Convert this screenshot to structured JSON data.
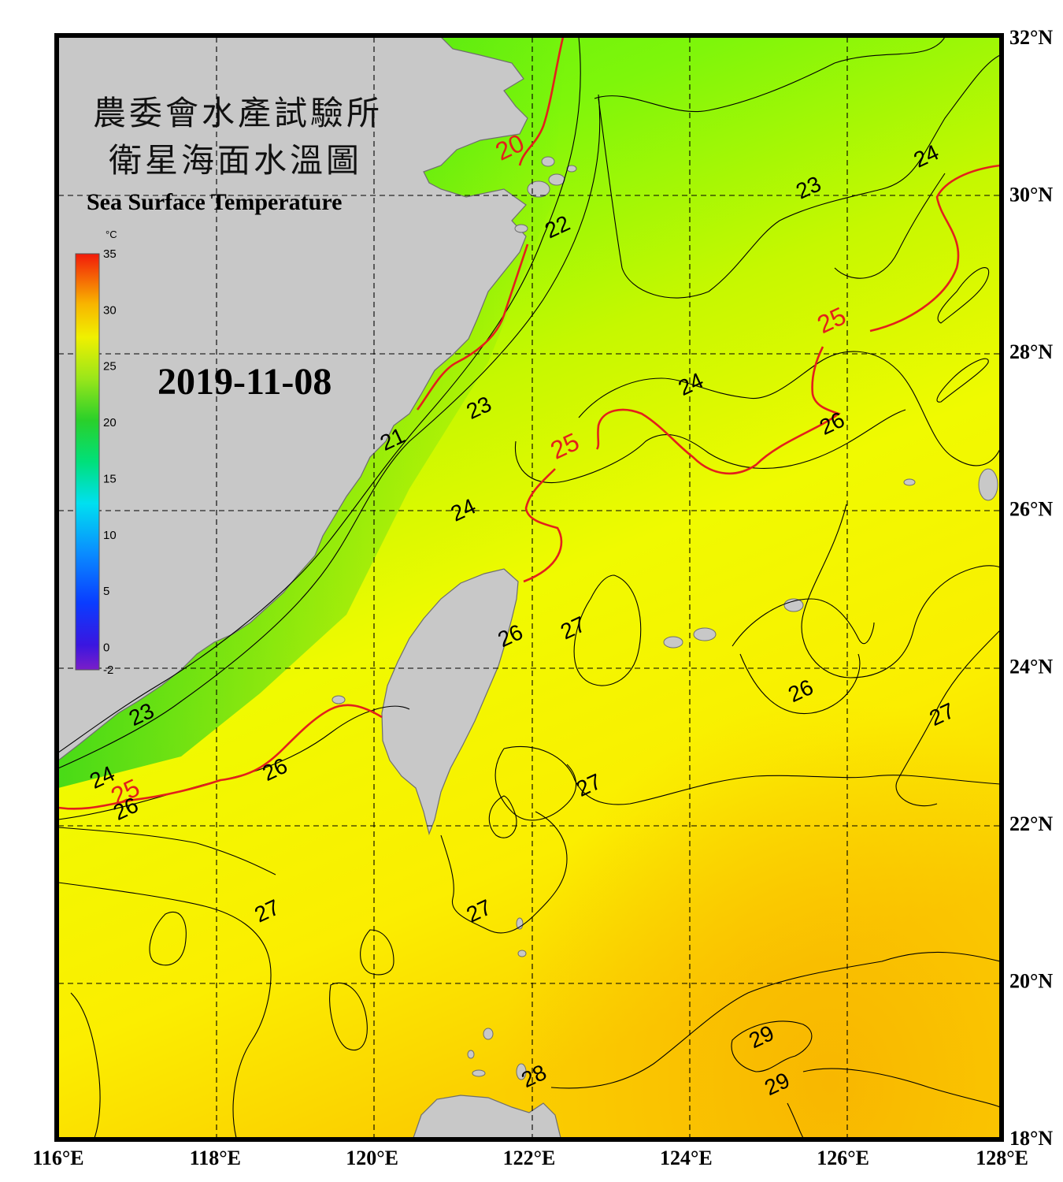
{
  "title": {
    "zh_line1": "農委會水產試驗所",
    "zh_line2": "衛星海面水溫圖",
    "en": "Sea Surface Temperature"
  },
  "date": "2019-11-08",
  "colorbar": {
    "unit": "°C",
    "ticks": [
      "35",
      "30",
      "25",
      "20",
      "15",
      "10",
      "5",
      "0",
      "-2"
    ]
  },
  "axes": {
    "lon_labels": [
      "116°E",
      "118°E",
      "120°E",
      "122°E",
      "124°E",
      "126°E",
      "128°E"
    ],
    "lat_labels": [
      "32°N",
      "30°N",
      "28°N",
      "26°N",
      "24°N",
      "22°N",
      "20°N",
      "18°N"
    ]
  },
  "contour_labels": [
    {
      "text": "20",
      "lon": 121.8,
      "lat": 30.5,
      "highlight": true
    },
    {
      "text": "22",
      "lon": 122.4,
      "lat": 29.5,
      "highlight": false
    },
    {
      "text": "23",
      "lon": 125.6,
      "lat": 30.0,
      "highlight": false
    },
    {
      "text": "24",
      "lon": 127.1,
      "lat": 30.4,
      "highlight": false
    },
    {
      "text": "25",
      "lon": 125.9,
      "lat": 28.3,
      "highlight": true
    },
    {
      "text": "24",
      "lon": 124.1,
      "lat": 27.5,
      "highlight": false
    },
    {
      "text": "26",
      "lon": 125.9,
      "lat": 27.0,
      "highlight": false
    },
    {
      "text": "23",
      "lon": 121.4,
      "lat": 27.2,
      "highlight": false
    },
    {
      "text": "25",
      "lon": 122.5,
      "lat": 26.7,
      "highlight": true
    },
    {
      "text": "21",
      "lon": 120.3,
      "lat": 26.8,
      "highlight": false
    },
    {
      "text": "24",
      "lon": 121.2,
      "lat": 25.9,
      "highlight": false
    },
    {
      "text": "27",
      "lon": 122.6,
      "lat": 24.4,
      "highlight": false
    },
    {
      "text": "26",
      "lon": 121.8,
      "lat": 24.3,
      "highlight": false
    },
    {
      "text": "26",
      "lon": 125.5,
      "lat": 23.6,
      "highlight": false
    },
    {
      "text": "27",
      "lon": 127.3,
      "lat": 23.3,
      "highlight": false
    },
    {
      "text": "23",
      "lon": 117.1,
      "lat": 23.3,
      "highlight": false
    },
    {
      "text": "26",
      "lon": 118.8,
      "lat": 22.6,
      "highlight": false
    },
    {
      "text": "24",
      "lon": 116.6,
      "lat": 22.5,
      "highlight": false
    },
    {
      "text": "25",
      "lon": 116.9,
      "lat": 22.3,
      "highlight": true
    },
    {
      "text": "26",
      "lon": 116.9,
      "lat": 22.1,
      "highlight": false
    },
    {
      "text": "27",
      "lon": 122.8,
      "lat": 22.4,
      "highlight": false
    },
    {
      "text": "27",
      "lon": 118.7,
      "lat": 20.8,
      "highlight": false
    },
    {
      "text": "27",
      "lon": 121.4,
      "lat": 20.8,
      "highlight": false
    },
    {
      "text": "29",
      "lon": 125.0,
      "lat": 19.2,
      "highlight": false
    },
    {
      "text": "29",
      "lon": 125.2,
      "lat": 18.6,
      "highlight": false
    },
    {
      "text": "28",
      "lon": 122.1,
      "lat": 18.7,
      "highlight": false
    }
  ],
  "colors": {
    "land": "#c8c8c8",
    "contour_highlight": "#e3201b",
    "contour": "#000000",
    "frame": "#000000"
  }
}
